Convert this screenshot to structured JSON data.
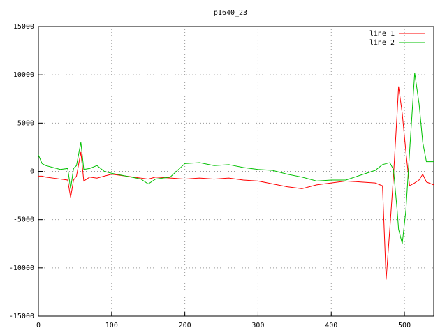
{
  "chart_data": {
    "type": "line",
    "title": "p1640_23",
    "x": [
      0,
      5,
      10,
      20,
      30,
      40,
      44,
      48,
      52,
      58,
      62,
      70,
      80,
      90,
      100,
      120,
      140,
      150,
      160,
      180,
      200,
      220,
      240,
      260,
      280,
      300,
      320,
      340,
      360,
      380,
      400,
      420,
      440,
      460,
      470,
      475,
      480,
      485,
      490,
      492,
      497,
      502,
      507,
      514,
      520,
      525,
      530,
      540
    ],
    "series": [
      {
        "name": "line 1",
        "color": "#ff0000",
        "values": [
          -500,
          -500,
          -600,
          -700,
          -800,
          -900,
          -2700,
          -900,
          -500,
          2000,
          -1000,
          -600,
          -700,
          -500,
          -300,
          -500,
          -700,
          -800,
          -600,
          -700,
          -800,
          -700,
          -800,
          -700,
          -900,
          -1000,
          -1300,
          -1600,
          -1800,
          -1400,
          -1200,
          -1000,
          -1100,
          -1200,
          -1500,
          -11200,
          -6000,
          -500,
          6000,
          8800,
          6000,
          2000,
          -1500,
          -1200,
          -900,
          -300,
          -1100,
          -1400
        ]
      },
      {
        "name": "line 2",
        "color": "#00c000",
        "values": [
          1700,
          800,
          600,
          400,
          200,
          300,
          -1800,
          300,
          600,
          3000,
          200,
          300,
          600,
          0,
          -200,
          -500,
          -800,
          -1300,
          -800,
          -600,
          800,
          900,
          600,
          700,
          400,
          200,
          100,
          -300,
          -600,
          -1000,
          -900,
          -900,
          -400,
          100,
          700,
          800,
          900,
          200,
          -4000,
          -6000,
          -7500,
          -4000,
          2000,
          10200,
          7000,
          3000,
          1000,
          1000
        ]
      }
    ],
    "xlim": [
      0,
      540
    ],
    "ylim": [
      -15000,
      15000
    ],
    "xticks": [
      0,
      100,
      200,
      300,
      400,
      500
    ],
    "yticks": [
      -15000,
      -10000,
      -5000,
      0,
      5000,
      10000,
      15000
    ],
    "grid": true,
    "legend": "top-right"
  }
}
